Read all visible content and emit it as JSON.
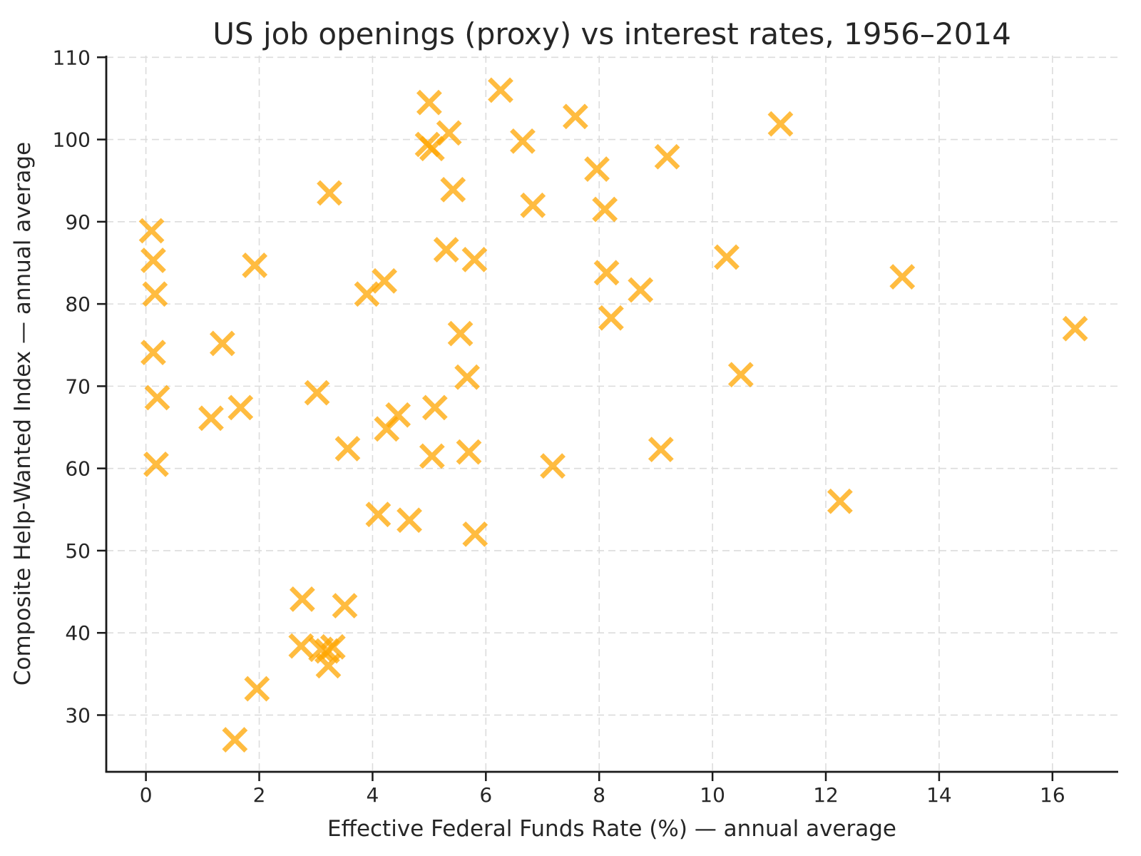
{
  "chart_data": {
    "type": "scatter",
    "title": "US job openings (proxy) vs interest rates, 1956–2014",
    "xlabel": "Effective Federal Funds Rate (%) — annual average",
    "ylabel": "Composite Help-Wanted Index — annual average",
    "xlim": [
      -0.7,
      17.16
    ],
    "ylim": [
      23.1,
      110.2
    ],
    "xticks": [
      0,
      2,
      4,
      6,
      8,
      10,
      12,
      14,
      16
    ],
    "xtick_labels": [
      "0",
      "2",
      "4",
      "6",
      "8",
      "10",
      "12",
      "14",
      "16"
    ],
    "yticks": [
      30,
      40,
      50,
      60,
      70,
      80,
      90,
      100,
      110
    ],
    "ytick_labels": [
      "30",
      "40",
      "50",
      "60",
      "70",
      "80",
      "90",
      "100",
      "110"
    ],
    "grid": true,
    "grid_style": "dashed",
    "legend": false,
    "marker": "x",
    "marker_color": "#FFA500",
    "marker_opacity": 0.75,
    "points": [
      [
        0.1,
        88.9
      ],
      [
        0.13,
        85.3
      ],
      [
        0.16,
        81.2
      ],
      [
        0.13,
        74.1
      ],
      [
        0.2,
        68.6
      ],
      [
        0.18,
        60.5
      ],
      [
        1.15,
        66.1
      ],
      [
        1.35,
        75.2
      ],
      [
        1.57,
        27.0
      ],
      [
        1.67,
        67.4
      ],
      [
        1.92,
        84.7
      ],
      [
        1.96,
        33.2
      ],
      [
        2.74,
        38.4
      ],
      [
        2.76,
        44.1
      ],
      [
        3.02,
        69.2
      ],
      [
        3.09,
        38.0
      ],
      [
        3.2,
        37.8
      ],
      [
        3.3,
        38.3
      ],
      [
        3.22,
        36.0
      ],
      [
        3.24,
        93.5
      ],
      [
        3.51,
        43.3
      ],
      [
        3.56,
        62.4
      ],
      [
        3.9,
        81.2
      ],
      [
        4.1,
        54.4
      ],
      [
        4.21,
        82.8
      ],
      [
        4.25,
        64.8
      ],
      [
        4.45,
        66.5
      ],
      [
        4.65,
        53.7
      ],
      [
        4.97,
        99.4
      ],
      [
        5.0,
        104.5
      ],
      [
        5.05,
        98.9
      ],
      [
        5.05,
        61.5
      ],
      [
        5.1,
        67.4
      ],
      [
        5.3,
        86.6
      ],
      [
        5.35,
        100.8
      ],
      [
        5.42,
        93.9
      ],
      [
        5.55,
        76.4
      ],
      [
        5.67,
        71.1
      ],
      [
        5.7,
        62.0
      ],
      [
        5.8,
        85.4
      ],
      [
        5.81,
        52.0
      ],
      [
        6.26,
        106.0
      ],
      [
        6.65,
        99.8
      ],
      [
        6.83,
        92.0
      ],
      [
        7.18,
        60.3
      ],
      [
        7.58,
        102.8
      ],
      [
        7.96,
        96.4
      ],
      [
        8.1,
        91.5
      ],
      [
        8.13,
        83.8
      ],
      [
        8.21,
        78.3
      ],
      [
        8.73,
        81.7
      ],
      [
        9.09,
        62.3
      ],
      [
        9.2,
        97.9
      ],
      [
        10.25,
        85.7
      ],
      [
        10.5,
        71.4
      ],
      [
        11.2,
        101.9
      ],
      [
        12.25,
        56.0
      ],
      [
        13.35,
        83.3
      ],
      [
        16.4,
        77.0
      ]
    ]
  }
}
